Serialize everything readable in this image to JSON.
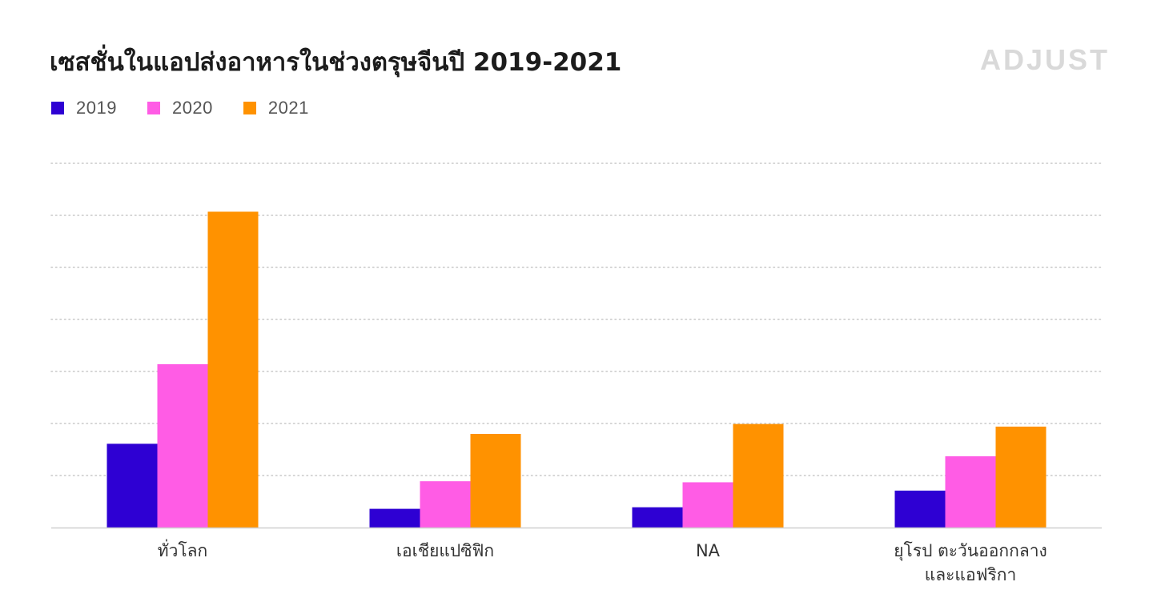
{
  "title": "เซสชั่นในแอปส่งอาหารในช่วงตรุษจีนปี 2019-2021",
  "logo_text": "ADJUST",
  "colors": {
    "series_2019": "#2e00d3",
    "series_2020": "#ff5ce5",
    "series_2021": "#ff9200",
    "grid": "#c8c8c8",
    "axis": "#cfcfcf",
    "tick_label": "#333333"
  },
  "chart_data": {
    "type": "bar",
    "title": "เซสชั่นในแอปส่งอาหารในช่วงตรุษจีนปี 2019-2021",
    "xlabel": "",
    "ylabel": "",
    "ylim": [
      0,
      7
    ],
    "grid": true,
    "legend_position": "top-left",
    "categories": [
      [
        "ทั่วโลก"
      ],
      [
        "เอเชียแปซิฟิก"
      ],
      [
        "NA"
      ],
      [
        "ยุโรป ตะวันออกกลาง",
        "และแอฟริกา"
      ]
    ],
    "series": [
      {
        "name": "2019",
        "color": "#2e00d3",
        "values": [
          1.61,
          0.36,
          0.39,
          0.71
        ]
      },
      {
        "name": "2020",
        "color": "#ff5ce5",
        "values": [
          3.14,
          0.89,
          0.87,
          1.37
        ]
      },
      {
        "name": "2021",
        "color": "#ff9200",
        "values": [
          6.07,
          1.8,
          1.99,
          1.94
        ]
      }
    ]
  }
}
